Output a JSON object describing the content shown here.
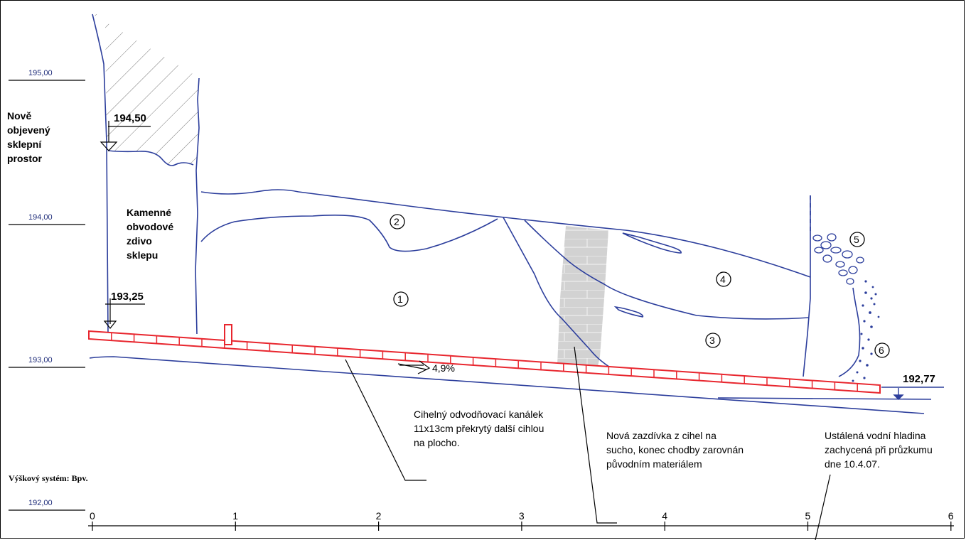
{
  "levels": {
    "l195": "195,00",
    "l194": "194,00",
    "l193": "193,00",
    "l192": "192,00"
  },
  "elevations": {
    "e19450": "194,50",
    "e19325": "193,25",
    "e19277": "192,77"
  },
  "labels": {
    "cellar": [
      "Nově",
      "objevený",
      "sklepní",
      "prostor"
    ],
    "wall": [
      "Kamenné",
      "obvodové",
      "zdivo",
      "sklepu"
    ],
    "channel": [
      "Cihelný odvodňovací kanálek",
      "11x13cm překrytý další cihlou",
      "na plocho."
    ],
    "backfill": [
      "Nová zazdívka z cihel na",
      "sucho, konec chodby zarovnán",
      "původním materiálem"
    ],
    "water": [
      "Ustálená vodní hladina",
      "zachycená při průzkumu",
      "dne  10.4.07."
    ],
    "slope": "4,9%",
    "height_system": "Výškový systém:  Bpv."
  },
  "layers": [
    "1",
    "2",
    "3",
    "4",
    "5",
    "6"
  ],
  "axis_ticks": [
    "0",
    "1",
    "2",
    "3",
    "4",
    "5",
    "6"
  ],
  "colors": {
    "outline": "#2c3e9c",
    "brick": "#e8262e",
    "fill_wall": "#d3d3d3"
  }
}
